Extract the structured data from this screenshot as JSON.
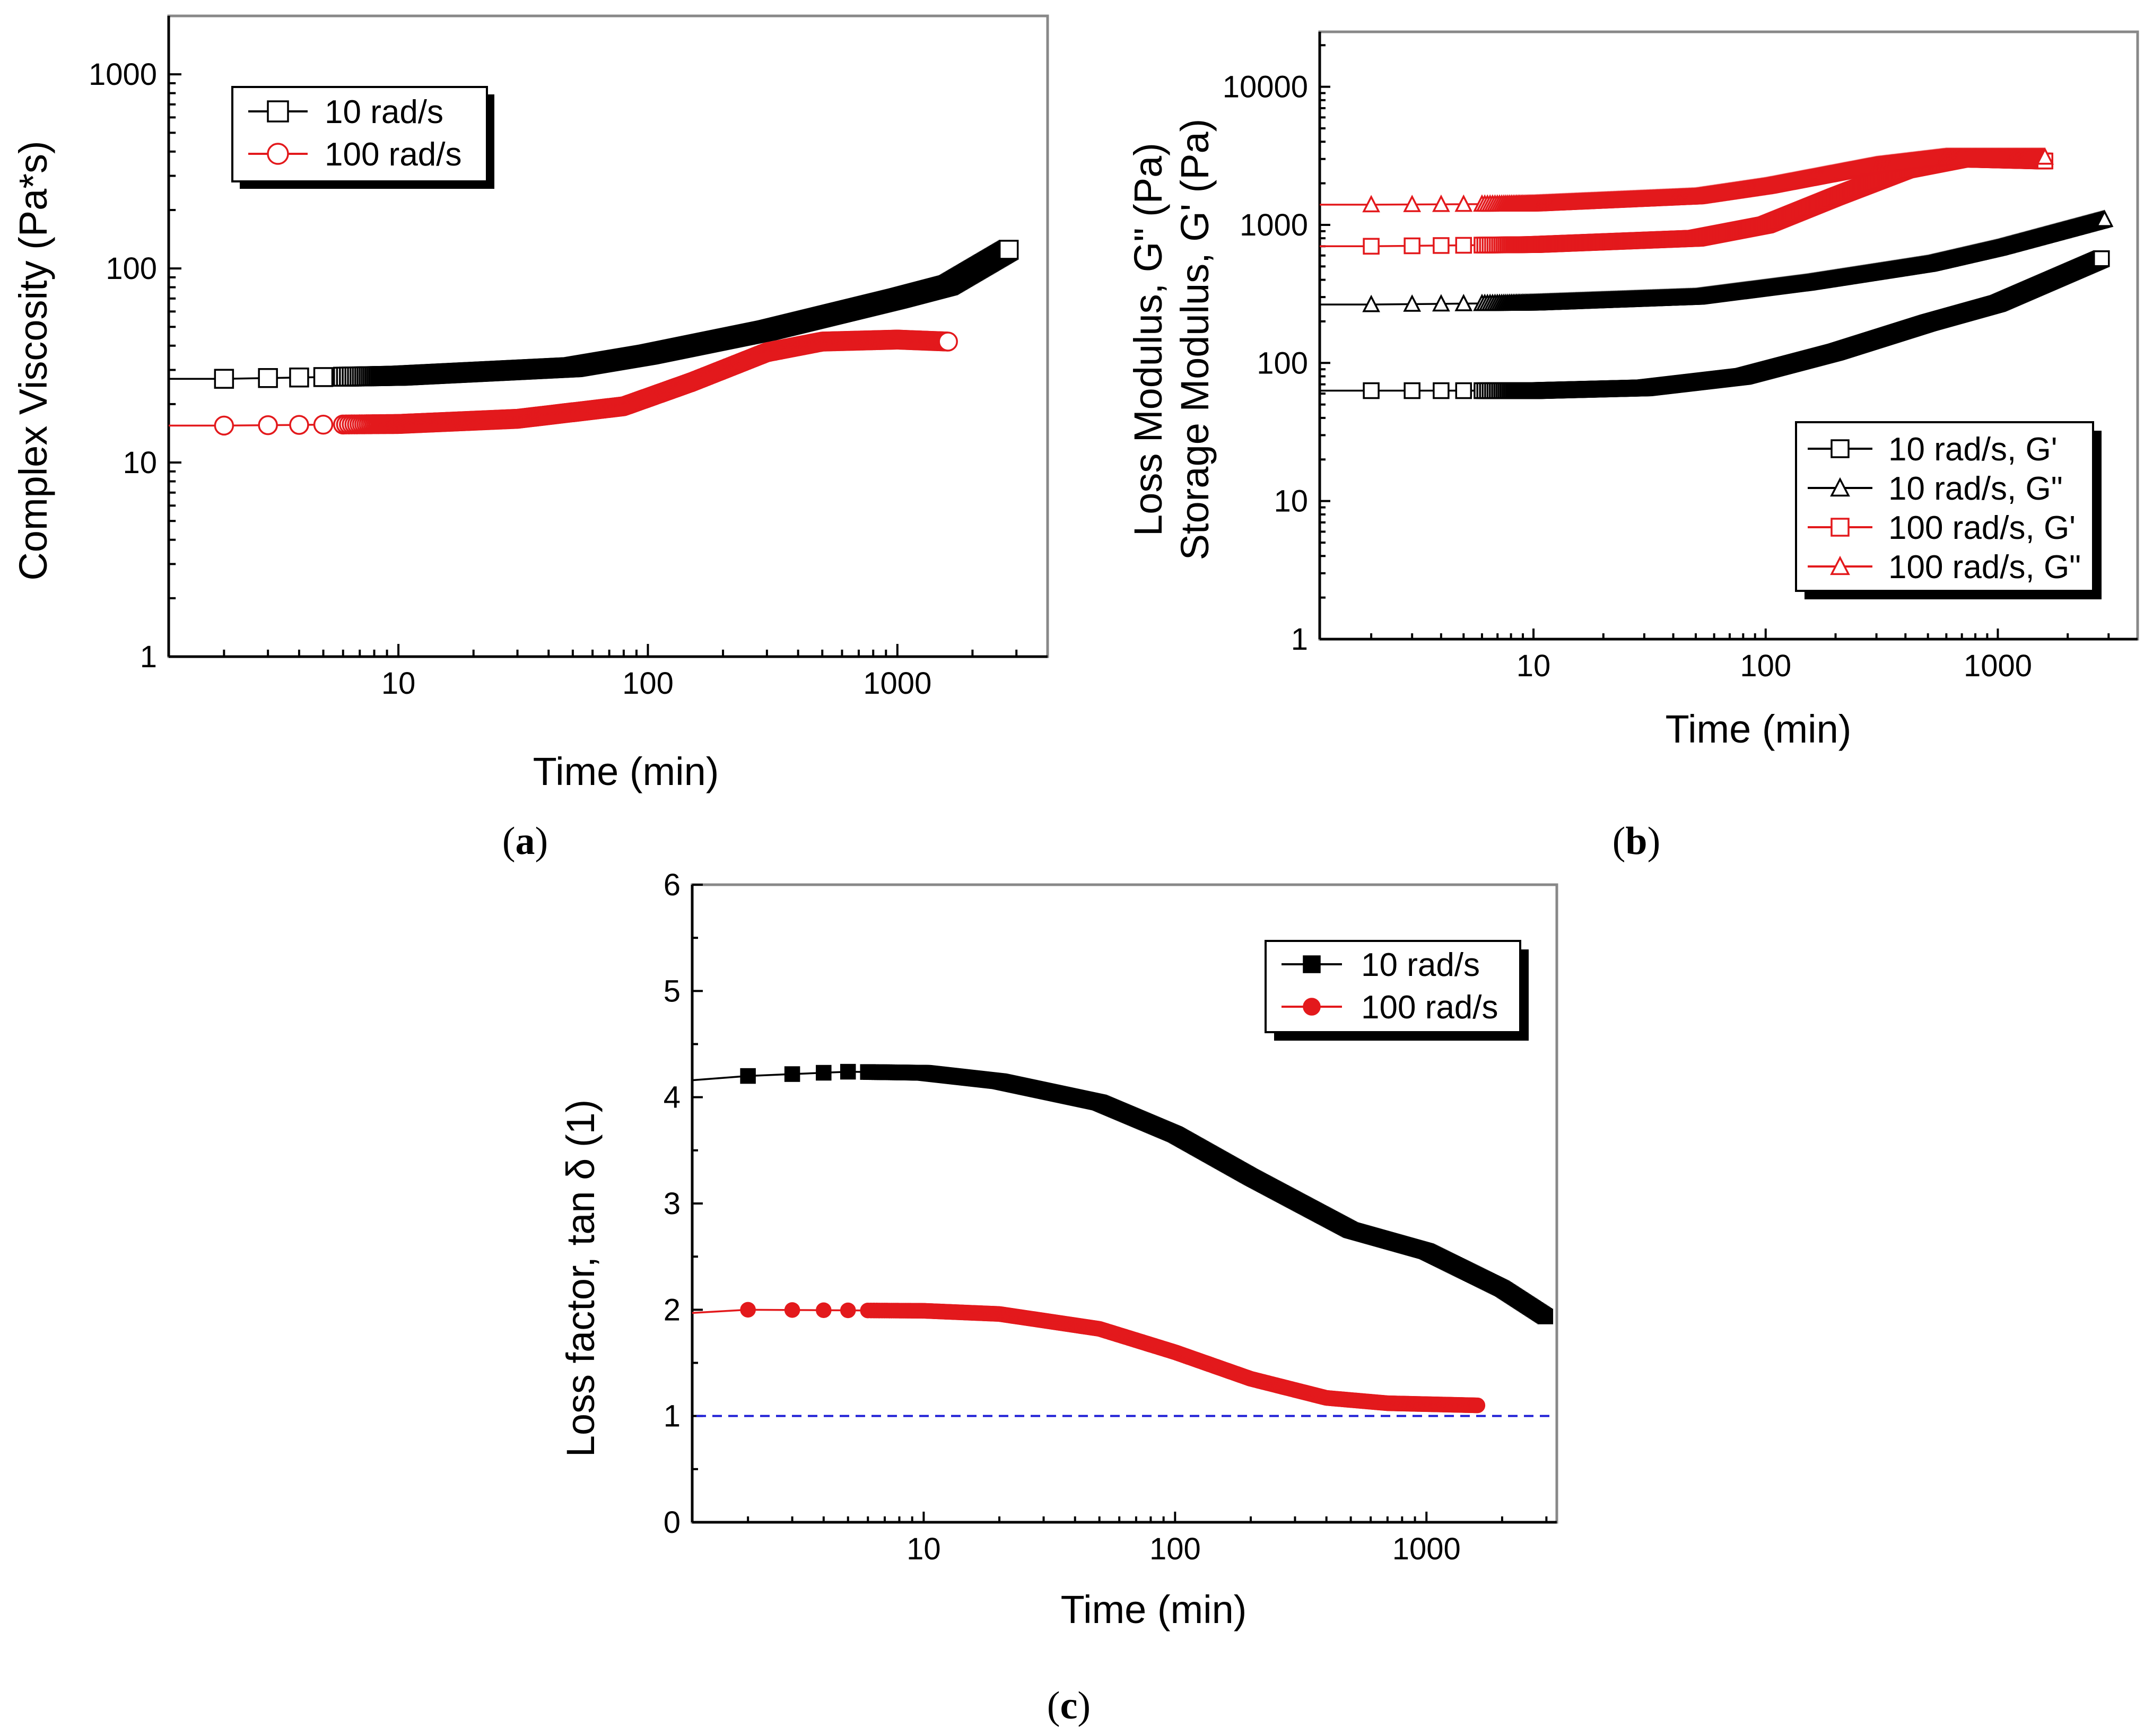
{
  "colors": {
    "black": "#000000",
    "red": "#e3191c",
    "dashed": "#1f1fd6"
  },
  "panels": [
    {
      "label_letter": "a",
      "chart_data": {
        "type": "scatter",
        "scale": "log-log",
        "xlabel": "Time (min)",
        "ylabel": "Complex Viscosity (Pa*s)",
        "xlim": [
          1.2,
          4000
        ],
        "ylim": [
          1,
          2000
        ],
        "xticks": [
          10,
          100,
          1000
        ],
        "xtick_labels": [
          "10",
          "100",
          "1000"
        ],
        "yticks": [
          1,
          10,
          100,
          1000
        ],
        "ytick_labels": [
          "1",
          "10",
          "100",
          "1000"
        ],
        "legend_position": "top-left",
        "series": [
          {
            "name": "10 rad/s",
            "marker": "square",
            "filled": false,
            "color": "#000000",
            "x_range": [
              2,
              2800
            ],
            "y_start": 27,
            "y_end": 125,
            "curve": [
              [
                1.2,
                27
              ],
              [
                2,
                27
              ],
              [
                10,
                28
              ],
              [
                50,
                31
              ],
              [
                100,
                36
              ],
              [
                300,
                48
              ],
              [
                1000,
                70
              ],
              [
                1600,
                82
              ],
              [
                2800,
                125
              ]
            ]
          },
          {
            "name": "100 rad/s",
            "marker": "circle",
            "filled": false,
            "color": "#e3191c",
            "x_range": [
              2,
              1600
            ],
            "y_start": 15.5,
            "y_end": 42,
            "curve": [
              [
                1.2,
                15.5
              ],
              [
                2,
                15.5
              ],
              [
                10,
                15.8
              ],
              [
                30,
                16.8
              ],
              [
                80,
                19.5
              ],
              [
                150,
                26
              ],
              [
                300,
                37
              ],
              [
                500,
                42
              ],
              [
                1000,
                43
              ],
              [
                1600,
                42
              ]
            ]
          }
        ]
      }
    },
    {
      "label_letter": "b",
      "chart_data": {
        "type": "scatter",
        "scale": "log-log",
        "xlabel": "Time (min)",
        "ylabel_line1": "Loss Modulus, G\" (Pa)",
        "ylabel_line2": "Storage Modulus, G' (Pa)",
        "xlim": [
          1.2,
          4000
        ],
        "ylim": [
          1,
          25000
        ],
        "xticks": [
          10,
          100,
          1000
        ],
        "xtick_labels": [
          "10",
          "100",
          "1000"
        ],
        "yticks": [
          1,
          10,
          100,
          1000,
          10000
        ],
        "ytick_labels": [
          "1",
          "10",
          "100",
          "1000",
          "10000"
        ],
        "legend_position": "bottom-right",
        "series": [
          {
            "name": "10 rad/s, G'",
            "marker": "square",
            "filled": false,
            "color": "#000000",
            "x_range": [
              2,
              2800
            ],
            "y_start": 63,
            "y_end": 570,
            "curve": [
              [
                1.2,
                63
              ],
              [
                2,
                63
              ],
              [
                10,
                63
              ],
              [
                30,
                66
              ],
              [
                80,
                80
              ],
              [
                200,
                120
              ],
              [
                500,
                195
              ],
              [
                1000,
                270
              ],
              [
                2800,
                570
              ]
            ]
          },
          {
            "name": "10 rad/s, G\"",
            "marker": "triangle",
            "filled": false,
            "color": "#000000",
            "x_range": [
              2,
              2900
            ],
            "y_start": 265,
            "y_end": 1100,
            "curve": [
              [
                1.2,
                265
              ],
              [
                2,
                265
              ],
              [
                10,
                272
              ],
              [
                50,
                300
              ],
              [
                150,
                380
              ],
              [
                500,
                520
              ],
              [
                1000,
                680
              ],
              [
                2900,
                1100
              ]
            ]
          },
          {
            "name": "100 rad/s, G'",
            "marker": "square",
            "filled": false,
            "color": "#e3191c",
            "x_range": [
              2,
              1600
            ],
            "y_start": 700,
            "y_end": 2900,
            "curve": [
              [
                1.2,
                700
              ],
              [
                2,
                700
              ],
              [
                10,
                720
              ],
              [
                50,
                800
              ],
              [
                100,
                1000
              ],
              [
                200,
                1600
              ],
              [
                400,
                2500
              ],
              [
                700,
                3000
              ],
              [
                1600,
                2900
              ]
            ]
          },
          {
            "name": "100 rad/s, G\"",
            "marker": "triangle",
            "filled": false,
            "color": "#e3191c",
            "x_range": [
              2,
              1600
            ],
            "y_start": 1400,
            "y_end": 3100,
            "curve": [
              [
                1.2,
                1400
              ],
              [
                2,
                1400
              ],
              [
                10,
                1420
              ],
              [
                50,
                1600
              ],
              [
                100,
                1900
              ],
              [
                300,
                2700
              ],
              [
                600,
                3100
              ],
              [
                1600,
                3100
              ]
            ]
          }
        ]
      }
    },
    {
      "label_letter": "c",
      "chart_data": {
        "type": "scatter",
        "scale": "log-linear",
        "xlabel": "Time (min)",
        "ylabel": "Loss factor, tan δ (1)",
        "xlim": [
          1.2,
          3300
        ],
        "ylim": [
          0,
          6
        ],
        "xticks": [
          10,
          100,
          1000
        ],
        "xtick_labels": [
          "10",
          "100",
          "1000"
        ],
        "yticks": [
          0,
          1,
          2,
          3,
          4,
          5,
          6
        ],
        "ytick_labels": [
          "0",
          "1",
          "2",
          "3",
          "4",
          "5",
          "6"
        ],
        "legend_position": "top-right",
        "reference_line": {
          "y": 1,
          "style": "dashed"
        },
        "series": [
          {
            "name": "10 rad/s",
            "marker": "square",
            "filled": true,
            "color": "#000000",
            "x_range": [
              2,
              3000
            ],
            "y_start": 4.2,
            "y_end": 1.93,
            "curve": [
              [
                1.2,
                4.16
              ],
              [
                2,
                4.2
              ],
              [
                5,
                4.24
              ],
              [
                10,
                4.23
              ],
              [
                20,
                4.15
              ],
              [
                50,
                3.95
              ],
              [
                100,
                3.65
              ],
              [
                200,
                3.25
              ],
              [
                500,
                2.75
              ],
              [
                1000,
                2.55
              ],
              [
                2000,
                2.2
              ],
              [
                3000,
                1.93
              ]
            ]
          },
          {
            "name": "100 rad/s",
            "marker": "circle",
            "filled": true,
            "color": "#e3191c",
            "x_range": [
              2,
              1600
            ],
            "y_start": 2.0,
            "y_end": 1.1,
            "curve": [
              [
                1.2,
                1.97
              ],
              [
                2,
                2.0
              ],
              [
                10,
                1.99
              ],
              [
                20,
                1.96
              ],
              [
                50,
                1.82
              ],
              [
                100,
                1.6
              ],
              [
                200,
                1.35
              ],
              [
                400,
                1.17
              ],
              [
                700,
                1.12
              ],
              [
                1600,
                1.1
              ]
            ]
          }
        ]
      }
    }
  ]
}
